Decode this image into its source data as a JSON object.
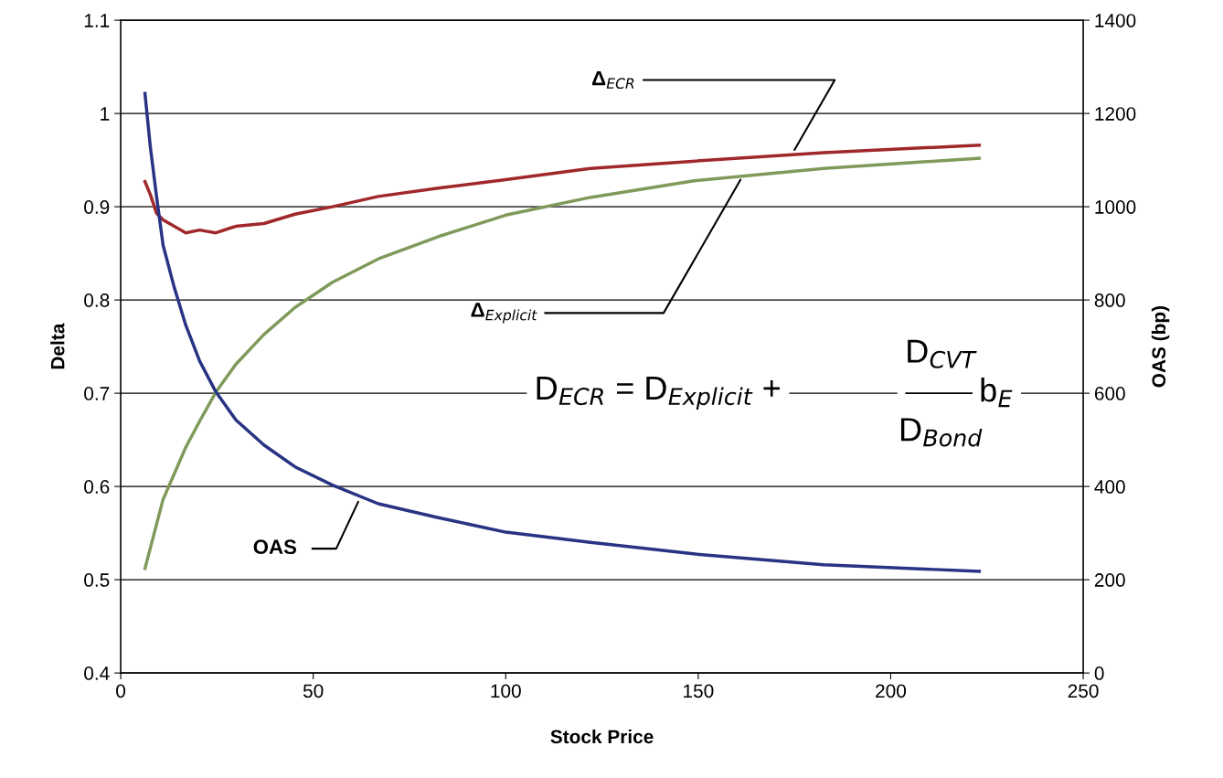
{
  "chart_data": {
    "type": "line",
    "xlabel": "Stock Price",
    "ylabel": "Delta",
    "y2label": "OAS (bp)",
    "xlim": [
      0,
      250
    ],
    "xticks": [
      0,
      50,
      100,
      150,
      200,
      250
    ],
    "ylim": [
      0.4,
      1.1
    ],
    "yticks": [
      0.4,
      0.5,
      0.6,
      0.7,
      0.8,
      0.9,
      1,
      1.1
    ],
    "y2lim": [
      0,
      1400
    ],
    "y2ticks": [
      0,
      200,
      400,
      600,
      800,
      1000,
      1200,
      1400
    ],
    "grid": "y",
    "marker": "none",
    "line_style": "solid",
    "series": [
      {
        "color": "#a0282a",
        "x": [
          6.3,
          7.7,
          9.3,
          11.0,
          16.9,
          20.5,
          24.7,
          29.9,
          37.2,
          45.3,
          55.0,
          66.9,
          82.5,
          100,
          122,
          149.3,
          182.6,
          223
        ],
        "values": [
          0.927,
          0.913,
          0.893,
          0.886,
          0.872,
          0.875,
          0.872,
          0.879,
          0.882,
          0.892,
          0.9,
          0.911,
          0.92,
          0.929,
          0.941,
          0.949,
          0.958,
          0.966
        ]
      },
      {
        "color": "#7f9a5a",
        "x": [
          6.3,
          11.0,
          16.9,
          20.5,
          24.7,
          29.9,
          37.2,
          45.3,
          55.0,
          66.9,
          82.5,
          100,
          122,
          149.3,
          182.6,
          223
        ],
        "values": [
          0.512,
          0.586,
          0.642,
          0.67,
          0.701,
          0.731,
          0.763,
          0.792,
          0.819,
          0.844,
          0.868,
          0.891,
          0.91,
          0.928,
          0.941,
          0.952
        ]
      },
      {
        "color": "#283383",
        "axis": "y2",
        "x": [
          6.3,
          7.7,
          9.4,
          11.0,
          13.9,
          16.9,
          20.5,
          24.7,
          29.9,
          37.2,
          45.3,
          55.0,
          66.9,
          82.5,
          100,
          122,
          149.3,
          182.6,
          223
        ],
        "values": [
          1243,
          1128,
          1016,
          918,
          827,
          746,
          669,
          603,
          543,
          489,
          442,
          403,
          363,
          333,
          302,
          280,
          255,
          232,
          218
        ]
      }
    ],
    "annotations": [
      {
        "text": "Δ$_{ECR}$",
        "x": 175,
        "y": 0.961
      },
      {
        "text": "Δ$_{Explicit}$",
        "x": 161,
        "y": 0.929
      },
      "D$_{ECR}$ = D$_{Explicit}$ +",
      "D$_{CVT}$",
      "D$_{Bond}$",
      "b$_{E}$",
      "OAS"
    ]
  }
}
